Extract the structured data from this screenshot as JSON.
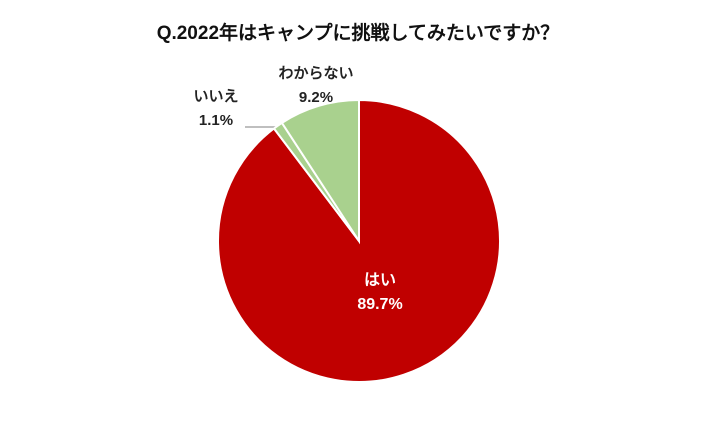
{
  "chart_data": {
    "type": "pie",
    "title": "Q.2022年はキャンプに挑戦してみたいですか？",
    "categories": [
      "はい",
      "いいえ",
      "わからない"
    ],
    "values": [
      89.7,
      1.1,
      9.2
    ],
    "value_labels": [
      "89.7%",
      "1.1%",
      "9.2%"
    ],
    "colors": [
      "#c00000",
      "#a9d18e",
      "#a9d18e"
    ]
  }
}
